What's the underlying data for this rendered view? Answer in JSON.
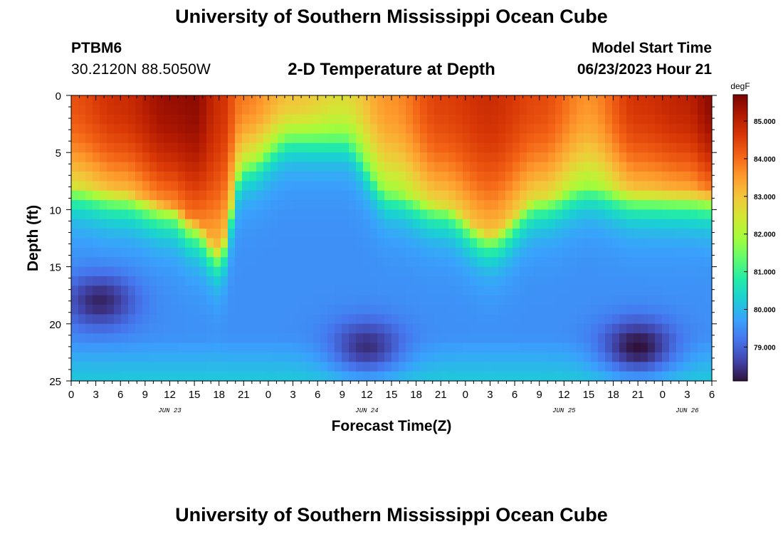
{
  "page": {
    "title": "University of Southern Mississippi Ocean Cube",
    "title_repeat": "University of Southern Mississippi Ocean Cube"
  },
  "header": {
    "station_id": "PTBM6",
    "coords": "30.2120N  88.5050W",
    "subtitle": "2-D Temperature at Depth",
    "start_label": "Model Start Time",
    "start_value": "06/23/2023 Hour 21"
  },
  "chart_data": {
    "type": "heatmap",
    "title": "2-D Temperature at Depth",
    "xlabel": "Forecast Time(Z)",
    "ylabel": "Depth (ft)",
    "x_range_hours": [
      0,
      78
    ],
    "y_range_ft": [
      0,
      25
    ],
    "y_inverted": true,
    "x_ticks": [
      "0",
      "3",
      "6",
      "9",
      "12",
      "15",
      "18",
      "21",
      "0",
      "3",
      "6",
      "9",
      "12",
      "15",
      "18",
      "21",
      "0",
      "3",
      "6",
      "9",
      "12",
      "15",
      "18",
      "21",
      "0",
      "3",
      "6"
    ],
    "x_tick_hours": [
      0,
      3,
      6,
      9,
      12,
      15,
      18,
      21,
      24,
      27,
      30,
      33,
      36,
      39,
      42,
      45,
      48,
      51,
      54,
      57,
      60,
      63,
      66,
      69,
      72,
      75,
      78
    ],
    "y_ticks": [
      "0",
      "5",
      "10",
      "15",
      "20",
      "25"
    ],
    "y_tick_values": [
      0,
      5,
      10,
      15,
      20,
      25
    ],
    "date_labels": [
      {
        "label": "JUN 23",
        "hour": 12
      },
      {
        "label": "JUN 24",
        "hour": 36
      },
      {
        "label": "JUN 25",
        "hour": 60
      },
      {
        "label": "JUN 26",
        "hour": 75
      }
    ],
    "colorbar": {
      "unit": "degF",
      "range": [
        78.1,
        85.7
      ],
      "tick_labels": [
        "85.000",
        "84.000",
        "83.000",
        "82.000",
        "81.000",
        "80.000",
        "79.000"
      ],
      "tick_values": [
        85,
        84,
        83,
        82,
        81,
        80,
        79
      ]
    },
    "field_features": [
      {
        "kind": "warm_mixed_layer_depth_ft",
        "hours": [
          0,
          6,
          12,
          15,
          18,
          21,
          27,
          33,
          39,
          45,
          51,
          57,
          63,
          69,
          75,
          78
        ],
        "values": [
          8,
          8.5,
          9.5,
          11,
          13.5,
          6,
          4,
          4.5,
          8.5,
          9.5,
          12,
          9,
          8,
          8.5,
          8.5,
          8.5
        ]
      },
      {
        "kind": "surface_temp_degF",
        "hours": [
          0,
          6,
          12,
          15,
          18,
          21,
          27,
          33,
          39,
          45,
          51,
          57,
          63,
          69,
          75,
          78
        ],
        "values": [
          84.3,
          84.8,
          85.4,
          85.5,
          84.8,
          83.8,
          83,
          82.6,
          83.6,
          84.5,
          84.8,
          84.4,
          83.6,
          84.7,
          85,
          85.5
        ]
      },
      {
        "kind": "cold_core",
        "hour": 3.5,
        "depth_ft": 18,
        "temp_degF": 78.3
      },
      {
        "kind": "cold_core",
        "hour": 36,
        "depth_ft": 22,
        "temp_degF": 78.4
      },
      {
        "kind": "cold_core",
        "hour": 69,
        "depth_ft": 22,
        "temp_degF": 78.1
      }
    ],
    "colors": {
      "colormap": [
        "#30123b",
        "#4145ab",
        "#4675ed",
        "#39a2fc",
        "#1bcfd4",
        "#24eca6",
        "#61fc6c",
        "#a4fc3b",
        "#d1e834",
        "#f3c63a",
        "#fe9b2d",
        "#f36315",
        "#d93806",
        "#b11901",
        "#7a0403"
      ]
    }
  }
}
